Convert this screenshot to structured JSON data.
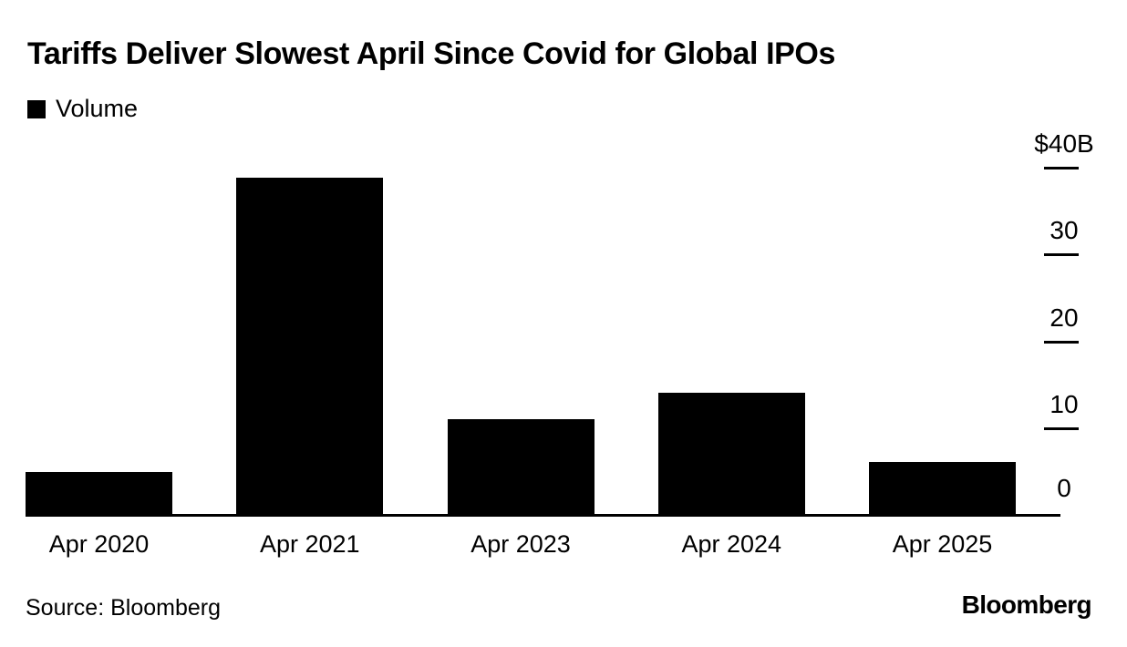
{
  "header": {
    "title": "Tariffs Deliver Slowest April Since Covid for Global IPOs"
  },
  "chart_data": {
    "type": "bar",
    "title": "Tariffs Deliver Slowest April Since Covid for Global IPOs",
    "categories": [
      "Apr 2020",
      "Apr 2021",
      "Apr 2023",
      "Apr 2024",
      "Apr 2025"
    ],
    "series": [
      {
        "name": "Volume",
        "color": "#000000",
        "values": [
          4.9,
          38.8,
          11.0,
          14.1,
          6.1
        ]
      }
    ],
    "ylim": [
      0,
      40
    ],
    "yticks": [
      {
        "value": 40,
        "label": "$40B"
      },
      {
        "value": 30,
        "label": "30"
      },
      {
        "value": 20,
        "label": "20"
      },
      {
        "value": 10,
        "label": "10"
      },
      {
        "value": 0,
        "label": "0"
      }
    ],
    "y_axis_side": "right",
    "grid": false,
    "legend_position": "top-left",
    "bar_color": "#000000",
    "background_color": "#ffffff"
  },
  "footer": {
    "source": "Source: Bloomberg",
    "brand": "Bloomberg"
  }
}
